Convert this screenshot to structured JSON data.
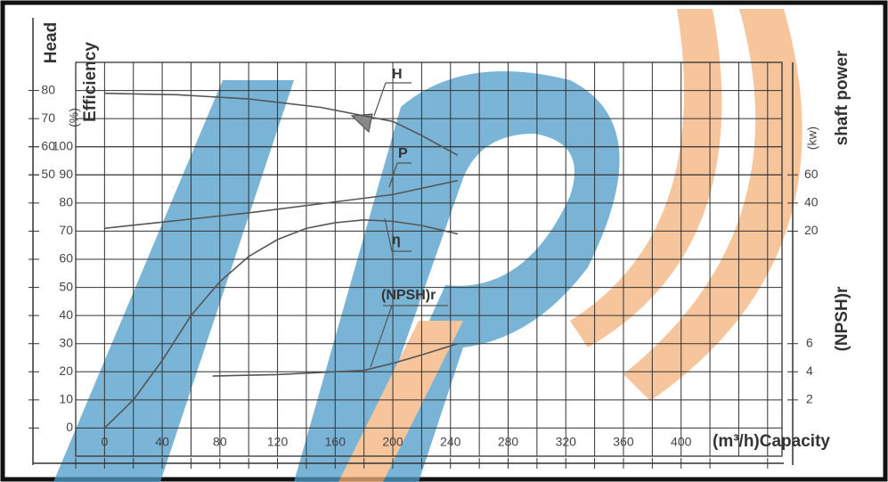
{
  "chart_data": {
    "type": "line",
    "x_label": "(m³/h)Capacity",
    "xlim": [
      -20,
      470
    ],
    "xticks": [
      0,
      40,
      80,
      120,
      160,
      200,
      240,
      280,
      320,
      360,
      400
    ],
    "y_label": "Efficiency",
    "y_unit": "(%)",
    "ylim": [
      -10,
      130
    ],
    "yticks": [
      0,
      10,
      20,
      30,
      40,
      50,
      60,
      70,
      80,
      90,
      100
    ],
    "head_axis": {
      "label": "Head",
      "ylim": [
        -50,
        90
      ],
      "ticks": [
        50,
        60,
        70,
        80
      ]
    },
    "power_axis": {
      "label": "shaft power",
      "unit": "(kw)",
      "ylim": [
        -140,
        140
      ],
      "ticks": [
        20,
        40,
        60
      ]
    },
    "npsh_axis": {
      "label": "(NPSH)r",
      "ylim": [
        -2,
        26
      ],
      "ticks": [
        2,
        4,
        6
      ]
    },
    "grid": true,
    "series": [
      {
        "name": "H",
        "axis": "head",
        "color": "#555555",
        "x": [
          0,
          50,
          100,
          150,
          180,
          200,
          220,
          245
        ],
        "values": [
          79,
          78.5,
          77,
          74,
          71,
          69,
          64,
          57
        ]
      },
      {
        "name": "P",
        "axis": "power",
        "color": "#555555",
        "x": [
          0,
          100,
          200,
          245
        ],
        "values": [
          22,
          33,
          46,
          56
        ]
      },
      {
        "name": "η",
        "axis": "efficiency",
        "color": "#555555",
        "x": [
          0,
          20,
          40,
          60,
          80,
          100,
          120,
          140,
          160,
          180,
          200,
          220,
          245
        ],
        "values": [
          0,
          10,
          24,
          40,
          52,
          61,
          67,
          71,
          73,
          74,
          73.5,
          72,
          69
        ]
      },
      {
        "name": "(NPSH)r",
        "axis": "npsh",
        "color": "#555555",
        "x": [
          75,
          120,
          180,
          200,
          220,
          245
        ],
        "values": [
          3.7,
          3.8,
          4.1,
          4.6,
          5.2,
          6.0
        ]
      }
    ]
  }
}
